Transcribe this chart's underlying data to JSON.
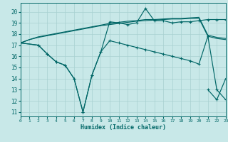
{
  "xlabel": "Humidex (Indice chaleur)",
  "bg_color": "#c8e8e8",
  "line_color": "#006666",
  "grid_color": "#a8d0d0",
  "xlim": [
    0,
    23
  ],
  "ylim": [
    10.6,
    20.8
  ],
  "yticks": [
    11,
    12,
    13,
    14,
    15,
    16,
    17,
    18,
    19,
    20
  ],
  "xticks": [
    0,
    1,
    2,
    3,
    4,
    5,
    6,
    7,
    8,
    9,
    10,
    11,
    12,
    13,
    14,
    15,
    16,
    17,
    18,
    19,
    20,
    21,
    22,
    23
  ],
  "curve1_x": [
    0,
    1,
    2,
    3,
    4,
    5,
    6,
    7,
    8,
    9,
    10,
    11,
    12,
    13,
    14,
    15,
    16,
    17,
    18,
    19,
    20,
    21,
    22,
    23
  ],
  "curve1_y": [
    17.2,
    17.5,
    17.7,
    17.85,
    18.0,
    18.15,
    18.3,
    18.45,
    18.6,
    18.75,
    18.85,
    18.95,
    19.05,
    19.15,
    19.2,
    19.25,
    19.3,
    19.35,
    19.35,
    19.4,
    19.4,
    17.8,
    17.6,
    17.5
  ],
  "curve2_x": [
    0,
    1,
    2,
    3,
    4,
    5,
    6,
    7,
    8,
    9,
    10,
    11,
    12,
    13,
    14,
    15,
    16,
    17,
    18,
    19,
    20,
    21,
    22,
    23
  ],
  "curve2_y": [
    17.2,
    17.5,
    17.75,
    17.9,
    18.05,
    18.2,
    18.35,
    18.5,
    18.65,
    18.8,
    18.95,
    19.05,
    19.15,
    19.2,
    19.3,
    19.3,
    19.35,
    19.4,
    19.4,
    19.45,
    19.5,
    17.9,
    17.7,
    17.6
  ],
  "curve3_x": [
    0,
    2,
    3,
    4,
    5,
    6,
    7,
    8,
    9,
    10,
    11,
    12,
    13,
    14,
    15,
    16,
    17,
    18,
    19,
    20,
    21,
    22,
    23
  ],
  "curve3_y": [
    17.2,
    17.0,
    16.2,
    15.5,
    15.2,
    14.0,
    11.0,
    14.3,
    16.4,
    19.1,
    19.0,
    18.85,
    19.0,
    20.3,
    19.2,
    19.2,
    19.0,
    19.1,
    19.1,
    19.2,
    19.3,
    19.3,
    19.3
  ],
  "curve4_x": [
    0,
    2,
    3,
    4,
    5,
    6,
    7,
    8,
    9,
    10,
    11,
    12,
    13,
    14,
    15,
    16,
    17,
    18,
    19,
    20,
    21,
    22,
    23
  ],
  "curve4_y": [
    17.2,
    17.0,
    16.2,
    15.5,
    15.2,
    14.0,
    11.0,
    14.3,
    16.4,
    17.4,
    17.2,
    17.0,
    16.8,
    16.6,
    16.4,
    16.2,
    16.0,
    15.8,
    15.6,
    15.3,
    17.8,
    13.0,
    12.1
  ],
  "curve5_x": [
    21,
    22,
    23
  ],
  "curve5_y": [
    13.0,
    12.1,
    14.0
  ]
}
